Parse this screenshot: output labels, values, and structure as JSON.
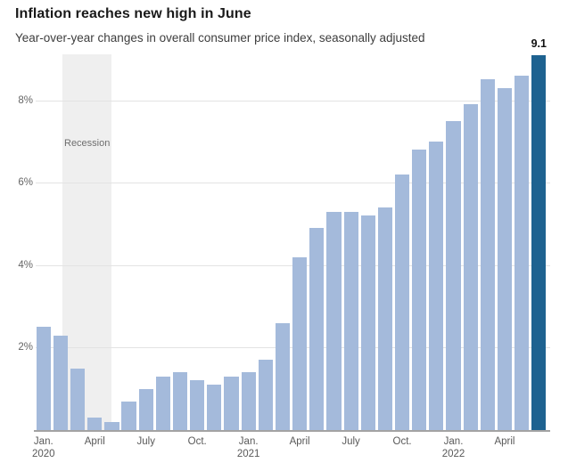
{
  "header": {
    "title": "Inflation reaches new high in June",
    "subtitle": "Year-over-year changes in overall consumer price index, seasonally adjusted"
  },
  "chart_data": {
    "type": "bar",
    "title": "Inflation reaches new high in June",
    "subtitle": "Year-over-year changes in overall consumer price index, seasonally adjusted",
    "unit": "percent, year-over-year change",
    "categories": [
      "Jan. 2020",
      "Feb. 2020",
      "March 2020",
      "April 2020",
      "May 2020",
      "June 2020",
      "July 2020",
      "Aug. 2020",
      "Sept. 2020",
      "Oct. 2020",
      "Nov. 2020",
      "Dec. 2020",
      "Jan. 2021",
      "Feb. 2021",
      "March 2021",
      "April 2021",
      "May 2021",
      "June 2021",
      "July 2021",
      "Aug. 2021",
      "Sept. 2021",
      "Oct. 2021",
      "Nov. 2021",
      "Dec. 2021",
      "Jan. 2022",
      "Feb. 2022",
      "March 2022",
      "April 2022",
      "May 2022",
      "June 2022"
    ],
    "values": [
      2.5,
      2.3,
      1.5,
      0.3,
      0.2,
      0.7,
      1.0,
      1.3,
      1.4,
      1.2,
      1.1,
      1.3,
      1.4,
      1.7,
      2.6,
      4.2,
      4.9,
      5.3,
      5.3,
      5.2,
      5.4,
      6.2,
      6.8,
      7.0,
      7.5,
      7.9,
      8.5,
      8.3,
      8.6,
      9.1
    ],
    "ylim": [
      0,
      9.3
    ],
    "grid": "horizontal",
    "legend": "none",
    "yticks": [
      {
        "value": 2,
        "label": "2%"
      },
      {
        "value": 4,
        "label": "4%"
      },
      {
        "value": 6,
        "label": "6%"
      },
      {
        "value": 8,
        "label": "8%"
      }
    ],
    "xticks": [
      {
        "index": 0,
        "line1": "Jan.",
        "line2": "2020"
      },
      {
        "index": 3,
        "line1": "April",
        "line2": ""
      },
      {
        "index": 6,
        "line1": "July",
        "line2": ""
      },
      {
        "index": 9,
        "line1": "Oct.",
        "line2": ""
      },
      {
        "index": 12,
        "line1": "Jan.",
        "line2": "2021"
      },
      {
        "index": 15,
        "line1": "April",
        "line2": ""
      },
      {
        "index": 18,
        "line1": "July",
        "line2": ""
      },
      {
        "index": 21,
        "line1": "Oct.",
        "line2": ""
      },
      {
        "index": 24,
        "line1": "Jan.",
        "line2": "2022"
      },
      {
        "index": 27,
        "line1": "April",
        "line2": ""
      }
    ],
    "highlight": {
      "index": 29,
      "label": "9.1"
    },
    "recession": {
      "label": "Recession",
      "start_index": 1,
      "end_index": 3
    },
    "colors": {
      "bar": "#a4badb",
      "highlight_bar": "#1e6290",
      "recession_band": "#efefef",
      "gridline": "#e3e3e3",
      "axis_line": "#a3a3a3",
      "y_tick_text": "#666666",
      "x_tick_text": "#595959",
      "recession_text": "#6e6e6e",
      "value_label_text": "#111111"
    }
  }
}
